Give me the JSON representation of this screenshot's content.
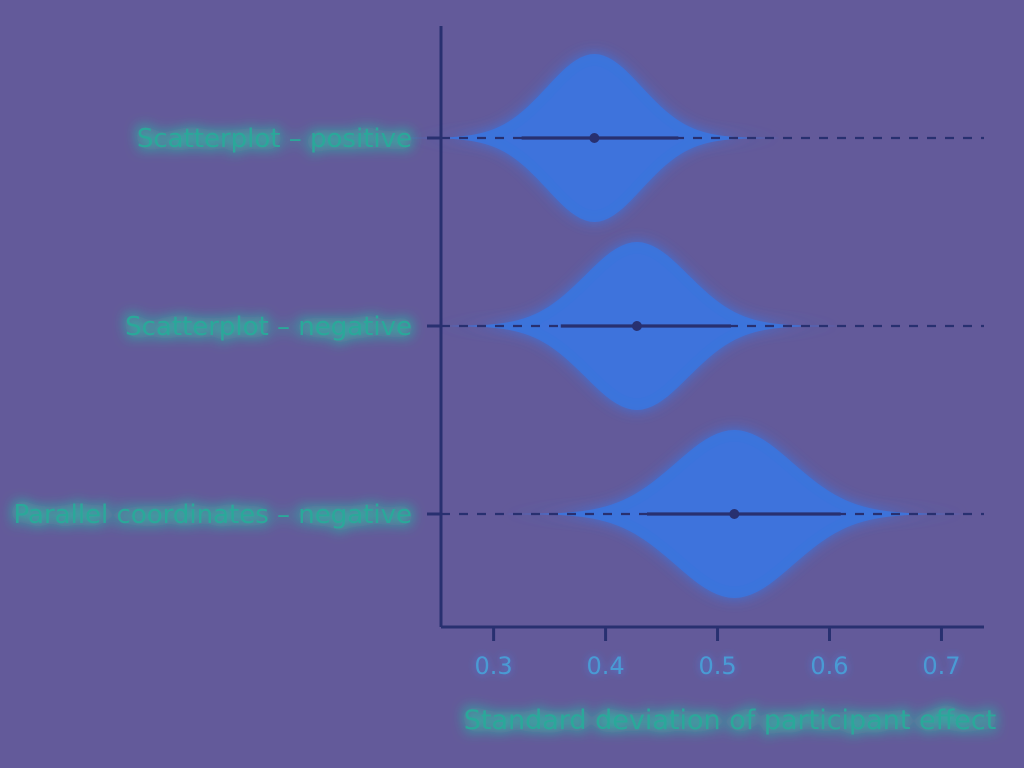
{
  "colors": {
    "background": "#635a9a",
    "violin": "#3c74dc",
    "violin_glow": "#3f8ff5",
    "line": "#283070",
    "label_text": "#2aa89a",
    "label_glow": "#22e8a8",
    "tick_text": "#4a9bd4"
  },
  "chart_data": {
    "type": "violin",
    "orientation": "horizontal",
    "categories": [
      "Scatterplot – positive",
      "Scatterplot – negative",
      "Parallel coordinates – negative"
    ],
    "series": [
      {
        "category": "Scatterplot – positive",
        "point_estimate": 0.39,
        "interval": [
          0.325,
          0.465
        ],
        "range": [
          0.34,
          0.47
        ]
      },
      {
        "category": "Scatterplot – negative",
        "point_estimate": 0.428,
        "interval": [
          0.36,
          0.512
        ],
        "range": [
          0.375,
          0.515
        ]
      },
      {
        "category": "Parallel coordinates – negative",
        "point_estimate": 0.515,
        "interval": [
          0.437,
          0.61
        ],
        "range": [
          0.43,
          0.625
        ]
      }
    ],
    "xlabel": "Standard deviation of participant effect",
    "ylabel": "",
    "xlim": [
      0.253,
      0.738
    ],
    "xticks": [
      "0.3",
      "0.4",
      "0.5",
      "0.6",
      "0.7"
    ],
    "grid": false
  }
}
